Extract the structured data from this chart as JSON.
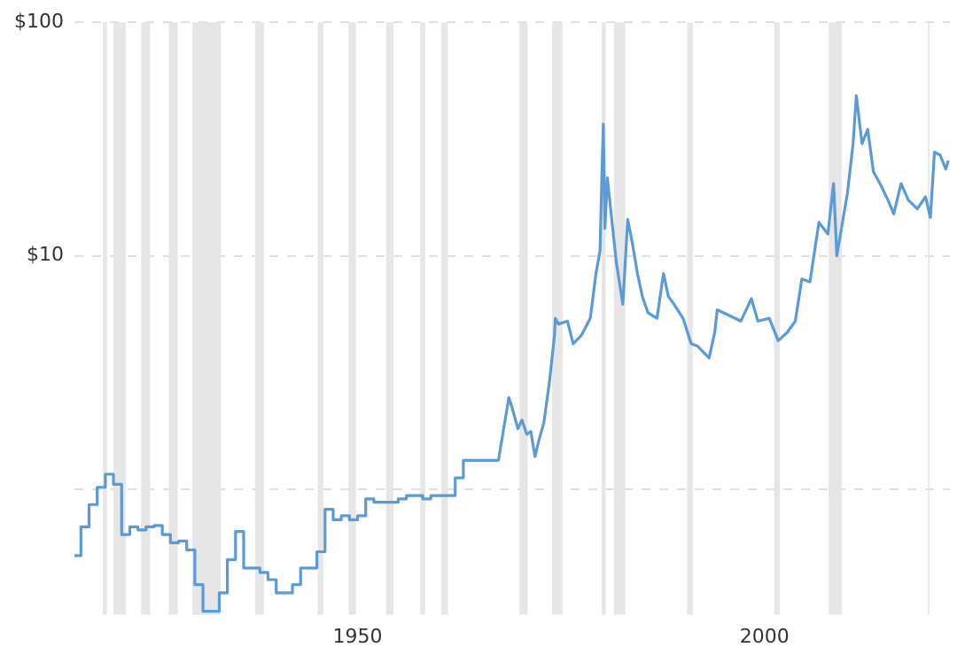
{
  "chart_data": {
    "type": "line",
    "log": "y",
    "grid": "y",
    "legend": false,
    "marker": "none",
    "line_style": "solid",
    "xlim": [
      1915.2,
      2022.8
    ],
    "xticks": [
      1950,
      2000
    ],
    "ylim": [
      0.29,
      100
    ],
    "yticks": [
      {
        "value": 100,
        "label": "$100"
      },
      {
        "value": 10,
        "label": "$10"
      },
      {
        "value": 1,
        "label": null
      }
    ],
    "bands": [
      {
        "axis": "x",
        "from": 1918.7,
        "to": 1919.2,
        "color": "#e6e6e6"
      },
      {
        "axis": "x",
        "from": 1920.0,
        "to": 1921.5,
        "color": "#e6e6e6"
      },
      {
        "axis": "x",
        "from": 1923.4,
        "to": 1924.5,
        "color": "#e6e6e6"
      },
      {
        "axis": "x",
        "from": 1926.8,
        "to": 1927.9,
        "color": "#e6e6e6"
      },
      {
        "axis": "x",
        "from": 1929.7,
        "to": 1933.2,
        "color": "#e6e6e6"
      },
      {
        "axis": "x",
        "from": 1937.4,
        "to": 1938.5,
        "color": "#e6e6e6"
      },
      {
        "axis": "x",
        "from": 1945.1,
        "to": 1945.8,
        "color": "#e6e6e6"
      },
      {
        "axis": "x",
        "from": 1948.9,
        "to": 1949.8,
        "color": "#e6e6e6"
      },
      {
        "axis": "x",
        "from": 1953.5,
        "to": 1954.4,
        "color": "#e6e6e6"
      },
      {
        "axis": "x",
        "from": 1957.7,
        "to": 1958.3,
        "color": "#e6e6e6"
      },
      {
        "axis": "x",
        "from": 1960.3,
        "to": 1961.1,
        "color": "#e6e6e6"
      },
      {
        "axis": "x",
        "from": 1969.9,
        "to": 1970.9,
        "color": "#e6e6e6"
      },
      {
        "axis": "x",
        "from": 1973.9,
        "to": 1975.2,
        "color": "#e6e6e6"
      },
      {
        "axis": "x",
        "from": 1980.0,
        "to": 1980.5,
        "color": "#e6e6e6"
      },
      {
        "axis": "x",
        "from": 1981.5,
        "to": 1982.9,
        "color": "#e6e6e6"
      },
      {
        "axis": "x",
        "from": 1990.5,
        "to": 1991.2,
        "color": "#e6e6e6"
      },
      {
        "axis": "x",
        "from": 2001.2,
        "to": 2001.9,
        "color": "#e6e6e6"
      },
      {
        "axis": "x",
        "from": 2007.9,
        "to": 2009.5,
        "color": "#e6e6e6"
      },
      {
        "axis": "x",
        "from": 2020.1,
        "to": 2020.3,
        "color": "#e6e6e6"
      }
    ],
    "series": [
      {
        "type": "step",
        "color": "#5b9bd5",
        "x": [
          1915.2,
          1916,
          1917,
          1918,
          1919,
          1920,
          1921,
          1922,
          1923,
          1924,
          1925,
          1926,
          1927,
          1928,
          1929,
          1930,
          1931,
          1932,
          1933,
          1934,
          1935,
          1936,
          1938,
          1939,
          1940,
          1942,
          1943,
          1945,
          1946,
          1947,
          1948,
          1949,
          1950,
          1951,
          1952,
          1955,
          1956,
          1958,
          1959,
          1962,
          1963,
          1967.3
        ],
        "values": [
          0.52,
          0.69,
          0.86,
          1.02,
          1.16,
          1.05,
          0.64,
          0.69,
          0.67,
          0.69,
          0.7,
          0.64,
          0.59,
          0.6,
          0.55,
          0.39,
          0.3,
          0.3,
          0.36,
          0.5,
          0.66,
          0.46,
          0.44,
          0.41,
          0.36,
          0.39,
          0.46,
          0.54,
          0.82,
          0.74,
          0.77,
          0.74,
          0.77,
          0.91,
          0.88,
          0.91,
          0.94,
          0.91,
          0.94,
          1.12,
          1.33,
          1.33
        ]
      },
      {
        "type": "line",
        "color": "#5b9bd5",
        "x": [
          1967.3,
          1967.9,
          1968.6,
          1969.0,
          1969.7,
          1970.2,
          1970.8,
          1971.3,
          1971.8,
          1972.3,
          1972.9,
          1973.6,
          1974.2,
          1974.3,
          1974.7,
          1975.8,
          1976.5,
          1977.5,
          1978.6,
          1979.3,
          1979.8,
          1980.0,
          1980.2,
          1980.4,
          1980.7,
          1981.1,
          1981.8,
          1982.6,
          1983.2,
          1983.7,
          1984.4,
          1985.0,
          1985.7,
          1986.8,
          1987.6,
          1988.2,
          1988.9,
          1990.0,
          1991.0,
          1991.8,
          1993.2,
          1993.9,
          1994.2,
          1995.7,
          1997.1,
          1998.4,
          1999.2,
          2000.6,
          2001.7,
          2002.8,
          2003.8,
          2004.6,
          2005.6,
          2006.7,
          2007.8,
          2008.5,
          2008.9,
          2010.2,
          2010.9,
          2011.3,
          2012.0,
          2012.7,
          2013.4,
          2014.2,
          2015.2,
          2015.9,
          2016.8,
          2017.7,
          2018.8,
          2019.8,
          2020.4,
          2020.9,
          2021.6,
          2022.3,
          2022.6
        ],
        "values": [
          1.32,
          1.77,
          2.47,
          2.23,
          1.82,
          1.98,
          1.72,
          1.77,
          1.38,
          1.63,
          1.93,
          2.92,
          4.56,
          5.4,
          5.1,
          5.25,
          4.2,
          4.56,
          5.4,
          8.4,
          10.5,
          20.4,
          36.7,
          13.1,
          21.6,
          15.9,
          9.4,
          6.2,
          14.3,
          11.7,
          8.4,
          6.7,
          5.7,
          5.4,
          8.4,
          6.7,
          6.2,
          5.4,
          4.2,
          4.1,
          3.65,
          4.7,
          5.87,
          5.55,
          5.25,
          6.55,
          5.25,
          5.4,
          4.33,
          4.7,
          5.25,
          7.95,
          7.74,
          13.9,
          12.4,
          20.4,
          10.0,
          18.5,
          30.2,
          48.5,
          30.2,
          34.8,
          22.9,
          20.4,
          17.3,
          15.1,
          20.4,
          17.3,
          15.9,
          17.9,
          14.6,
          27.8,
          27.0,
          23.5,
          25.6
        ]
      }
    ]
  }
}
